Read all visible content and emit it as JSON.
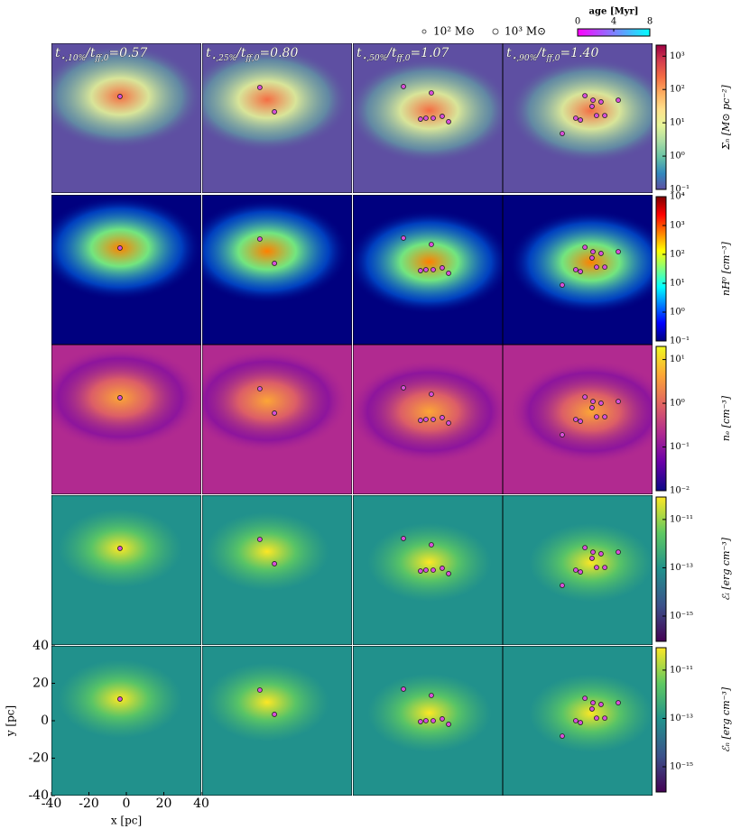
{
  "chart_data": {
    "type": "image-grid",
    "xlabel": "x [pc]",
    "ylabel": "y [pc]",
    "xlim": [
      -40,
      40
    ],
    "ylim": [
      -40,
      40
    ],
    "xticks": [
      -40,
      -20,
      0,
      20,
      40
    ],
    "yticks": [
      -40,
      -20,
      0,
      20,
      40
    ],
    "star_color": "#d94fd9",
    "columns": [
      {
        "title": [
          "t",
          "⋆,10%",
          "/t",
          "ff,0",
          "=0.57"
        ],
        "stars": {
          "x": [
            -3.4
          ],
          "y": [
            11.6
          ]
        }
      },
      {
        "title": [
          "t",
          "⋆,25%",
          "/t",
          "ff,0",
          "=0.80"
        ],
        "stars": {
          "x": [
            -9.2,
            -1.4
          ],
          "y": [
            16.4,
            3.4
          ]
        }
      },
      {
        "title": [
          "t",
          "⋆,50%",
          "/t",
          "ff,0",
          "=1.07"
        ],
        "stars": {
          "x": [
            -13.0,
            1.9,
            -3.9,
            -1.0,
            2.9,
            7.7,
            11.1
          ],
          "y": [
            16.9,
            13.5,
            -0.5,
            0.0,
            0.0,
            1.0,
            -1.9
          ]
        }
      },
      {
        "title": [
          "t",
          "⋆,90%",
          "/t",
          "ff,0",
          "=1.40"
        ],
        "stars": {
          "x": [
            3.9,
            8.2,
            12.5,
            -1.0,
            1.5,
            7.7,
            10.1,
            14.5,
            -8.2,
            21.7
          ],
          "y": [
            12.0,
            9.6,
            8.7,
            0.0,
            -1.0,
            6.3,
            1.4,
            1.4,
            -8.2,
            9.6
          ]
        }
      }
    ],
    "rows": [
      {
        "label": "Σₙ [M⊙ pc⁻²]",
        "log_scale": true,
        "lim": [
          0.1,
          2150
        ],
        "ticks": [
          {
            "value": 0.1,
            "label": "10⁻¹"
          },
          {
            "value": 1,
            "label": "10⁰"
          },
          {
            "value": 10,
            "label": "10¹"
          },
          {
            "value": 100,
            "label": "10²"
          },
          {
            "value": 1000,
            "label": "10³"
          }
        ],
        "colormap": [
          "#5e4fa2",
          "#3288bd",
          "#66c2a5",
          "#abdda4",
          "#e6f598",
          "#fee08b",
          "#fdae61",
          "#f46d43",
          "#d53e4f",
          "#9e0142"
        ]
      },
      {
        "label": "nH⁰ [cm⁻³]",
        "log_scale": true,
        "lim": [
          0.1,
          10000
        ],
        "ticks": [
          {
            "value": 0.1,
            "label": "10⁻¹"
          },
          {
            "value": 1,
            "label": "10⁰"
          },
          {
            "value": 10,
            "label": "10¹"
          },
          {
            "value": 100,
            "label": "10²"
          },
          {
            "value": 1000,
            "label": "10³"
          },
          {
            "value": 10000,
            "label": "10⁴"
          }
        ],
        "colormap": [
          "#00007f",
          "#0000ff",
          "#007fff",
          "#00ffff",
          "#7fff7f",
          "#ffff00",
          "#ff7f00",
          "#ff0000",
          "#7f0000"
        ]
      },
      {
        "label": "nₑ [cm⁻³]",
        "log_scale": true,
        "lim": [
          0.01,
          20
        ],
        "ticks": [
          {
            "value": 0.01,
            "label": "10⁻²"
          },
          {
            "value": 0.1,
            "label": "10⁻¹"
          },
          {
            "value": 1,
            "label": "10⁰"
          },
          {
            "value": 10,
            "label": "10¹"
          }
        ],
        "colormap": [
          "#0d0887",
          "#6a00a8",
          "#b12a90",
          "#e16462",
          "#fca636",
          "#f0f921"
        ]
      },
      {
        "label": "ℰᵢ [erg cm⁻³]",
        "log_scale": true,
        "lim": [
          9e-17,
          8.5e-11
        ],
        "ticks": [
          {
            "value": 1e-15,
            "label": "10⁻¹⁵"
          },
          {
            "value": 1e-13,
            "label": "10⁻¹³"
          },
          {
            "value": 1e-11,
            "label": "10⁻¹¹"
          }
        ],
        "colormap": [
          "#440154",
          "#3b528b",
          "#21918c",
          "#5ec962",
          "#fde725"
        ]
      },
      {
        "label": "ℰₙ [erg cm⁻³]",
        "log_scale": true,
        "lim": [
          9e-17,
          8.5e-11
        ],
        "ticks": [
          {
            "value": 1e-15,
            "label": "10⁻¹⁵"
          },
          {
            "value": 1e-13,
            "label": "10⁻¹³"
          },
          {
            "value": 1e-11,
            "label": "10⁻¹¹"
          }
        ],
        "colormap": [
          "#440154",
          "#3b528b",
          "#21918c",
          "#5ec962",
          "#fde725"
        ]
      }
    ],
    "legend": {
      "sizes": [
        "10² M⊙",
        "10³ M⊙"
      ],
      "age_label": "age [Myr]",
      "age_lim": [
        0,
        8
      ],
      "age_ticks": [
        0,
        4,
        8
      ],
      "age_colormap": [
        "#ff00ff",
        "#00ffff"
      ]
    }
  }
}
